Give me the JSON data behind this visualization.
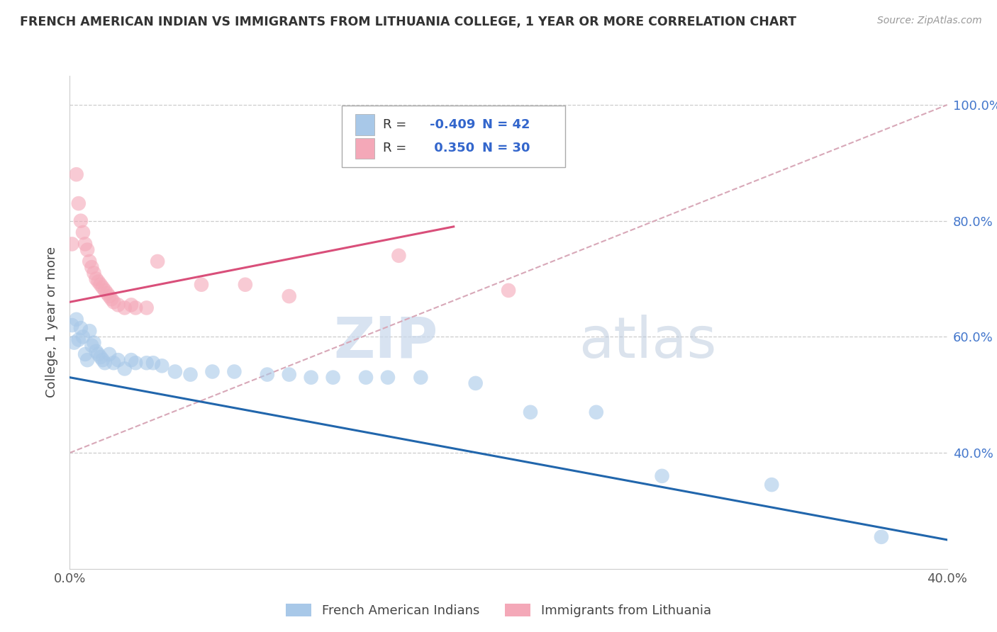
{
  "title": "FRENCH AMERICAN INDIAN VS IMMIGRANTS FROM LITHUANIA COLLEGE, 1 YEAR OR MORE CORRELATION CHART",
  "source": "Source: ZipAtlas.com",
  "ylabel": "College, 1 year or more",
  "xmin": 0.0,
  "xmax": 0.4,
  "ymin": 0.2,
  "ymax": 1.05,
  "yticks": [
    0.4,
    0.6,
    0.8,
    1.0
  ],
  "ytick_labels_right": [
    "40.0%",
    "60.0%",
    "80.0%",
    "100.0%"
  ],
  "xticks": [
    0.0,
    0.4
  ],
  "xtick_labels": [
    "0.0%",
    "40.0%"
  ],
  "r1_val": "-0.409",
  "n1_val": "N = 42",
  "r2_val": " 0.350",
  "n2_val": "N = 30",
  "blue_color": "#a8c8e8",
  "pink_color": "#f4a8b8",
  "blue_line_color": "#2166ac",
  "pink_line_color": "#d94f7a",
  "gray_line_color": "#d8a8b8",
  "r_val_color": "#3366cc",
  "blue_scatter": [
    [
      0.001,
      0.62
    ],
    [
      0.002,
      0.59
    ],
    [
      0.003,
      0.63
    ],
    [
      0.004,
      0.595
    ],
    [
      0.005,
      0.615
    ],
    [
      0.006,
      0.6
    ],
    [
      0.007,
      0.57
    ],
    [
      0.008,
      0.56
    ],
    [
      0.009,
      0.61
    ],
    [
      0.01,
      0.585
    ],
    [
      0.011,
      0.59
    ],
    [
      0.012,
      0.575
    ],
    [
      0.013,
      0.57
    ],
    [
      0.014,
      0.565
    ],
    [
      0.015,
      0.56
    ],
    [
      0.016,
      0.555
    ],
    [
      0.018,
      0.57
    ],
    [
      0.02,
      0.555
    ],
    [
      0.022,
      0.56
    ],
    [
      0.025,
      0.545
    ],
    [
      0.028,
      0.56
    ],
    [
      0.03,
      0.555
    ],
    [
      0.035,
      0.555
    ],
    [
      0.038,
      0.555
    ],
    [
      0.042,
      0.55
    ],
    [
      0.048,
      0.54
    ],
    [
      0.055,
      0.535
    ],
    [
      0.065,
      0.54
    ],
    [
      0.075,
      0.54
    ],
    [
      0.09,
      0.535
    ],
    [
      0.1,
      0.535
    ],
    [
      0.11,
      0.53
    ],
    [
      0.12,
      0.53
    ],
    [
      0.135,
      0.53
    ],
    [
      0.145,
      0.53
    ],
    [
      0.16,
      0.53
    ],
    [
      0.185,
      0.52
    ],
    [
      0.21,
      0.47
    ],
    [
      0.24,
      0.47
    ],
    [
      0.27,
      0.36
    ],
    [
      0.32,
      0.345
    ],
    [
      0.37,
      0.255
    ]
  ],
  "pink_scatter": [
    [
      0.001,
      0.76
    ],
    [
      0.003,
      0.88
    ],
    [
      0.004,
      0.83
    ],
    [
      0.005,
      0.8
    ],
    [
      0.006,
      0.78
    ],
    [
      0.007,
      0.76
    ],
    [
      0.008,
      0.75
    ],
    [
      0.009,
      0.73
    ],
    [
      0.01,
      0.72
    ],
    [
      0.011,
      0.71
    ],
    [
      0.012,
      0.7
    ],
    [
      0.013,
      0.695
    ],
    [
      0.014,
      0.69
    ],
    [
      0.015,
      0.685
    ],
    [
      0.016,
      0.68
    ],
    [
      0.017,
      0.675
    ],
    [
      0.018,
      0.67
    ],
    [
      0.019,
      0.665
    ],
    [
      0.02,
      0.66
    ],
    [
      0.022,
      0.655
    ],
    [
      0.025,
      0.65
    ],
    [
      0.028,
      0.655
    ],
    [
      0.03,
      0.65
    ],
    [
      0.035,
      0.65
    ],
    [
      0.04,
      0.73
    ],
    [
      0.06,
      0.69
    ],
    [
      0.08,
      0.69
    ],
    [
      0.1,
      0.67
    ],
    [
      0.15,
      0.74
    ],
    [
      0.2,
      0.68
    ]
  ],
  "blue_line_x": [
    0.0,
    0.4
  ],
  "blue_line_y": [
    0.53,
    0.25
  ],
  "pink_line_x": [
    0.0,
    0.175
  ],
  "pink_line_y": [
    0.66,
    0.79
  ],
  "gray_line_x": [
    0.0,
    0.4
  ],
  "gray_line_y": [
    0.4,
    1.0
  ],
  "watermark_zip": "ZIP",
  "watermark_atlas": "atlas",
  "bottom_legend": [
    "French American Indians",
    "Immigrants from Lithuania"
  ]
}
